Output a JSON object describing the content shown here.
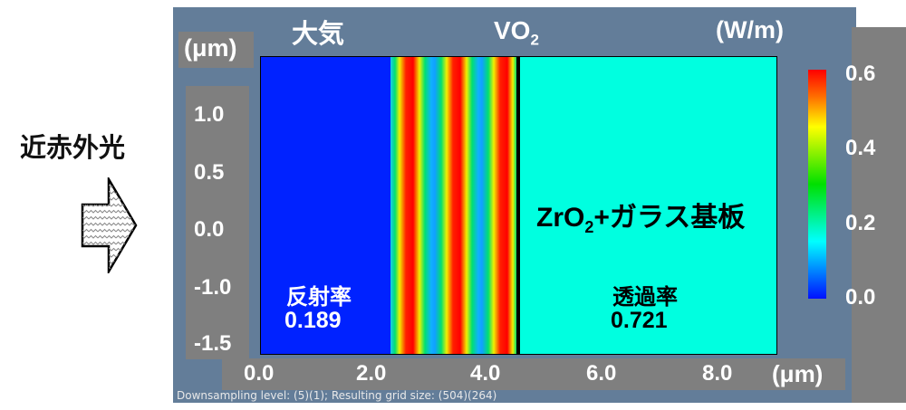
{
  "incident_label": "近赤外光",
  "y_unit": "(μm)",
  "x_unit": "(μm)",
  "colorbar_unit": "(W/m)",
  "region_labels": {
    "air": "大気",
    "vo2": "VO",
    "vo2_sub": "2",
    "substrate_pre": "ZrO",
    "substrate_sub": "2",
    "substrate_post": "+ガラス基板"
  },
  "reflectance": {
    "label": "反射率",
    "value": "0.189"
  },
  "transmittance": {
    "label": "透過率",
    "value": "0.721"
  },
  "y_ticks": [
    "1.0",
    "0.5",
    "0.0",
    "-1.0",
    "-1.5"
  ],
  "x_ticks": [
    "0.0",
    "2.0",
    "4.0",
    "6.0",
    "8.0"
  ],
  "colorbar_ticks": [
    "0.6",
    "0.4",
    "0.2",
    "0.0"
  ],
  "footer": "Downsampling level: (5)(1); Resulting grid size: (504)(264)",
  "colors": {
    "panel": "#637d99",
    "gray": "#7f7f7f",
    "air": "#0022ff",
    "substrate": "#00ffe0"
  }
}
